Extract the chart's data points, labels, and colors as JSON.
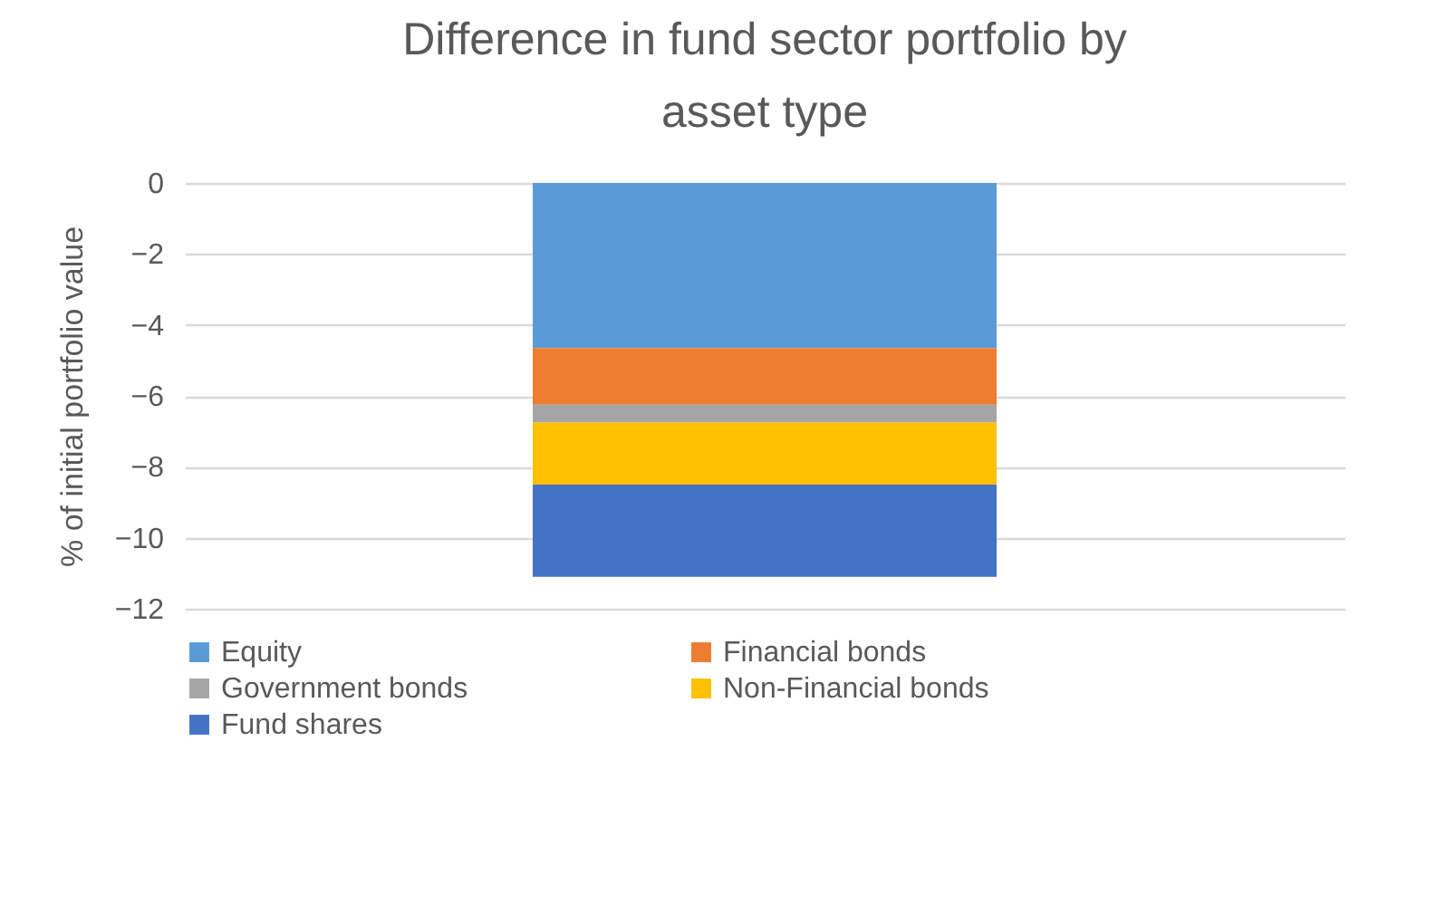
{
  "chart_data": {
    "type": "bar",
    "title": "Difference in fund sector portfolio by asset type",
    "ylabel": "% of initial portfolio value",
    "categories": [
      null
    ],
    "stacked": true,
    "ylim": [
      -12,
      0
    ],
    "yticks": [
      -12,
      -10,
      -8,
      -6,
      -4,
      -2,
      0
    ],
    "grid": "y",
    "legend": "bottom",
    "series": [
      {
        "name": "Equity",
        "color": "#5b9bd5",
        "values": [
          -4.65
        ]
      },
      {
        "name": "Financial bonds",
        "color": "#ed7d31",
        "values": [
          -1.6
        ]
      },
      {
        "name": "Government bonds",
        "color": "#a5a5a5",
        "values": [
          -0.5
        ]
      },
      {
        "name": "Non-Financial bonds",
        "color": "#ffc000",
        "values": [
          -1.75
        ]
      },
      {
        "name": "Fund shares",
        "color": "#4472c4",
        "values": [
          -2.6
        ]
      }
    ]
  }
}
